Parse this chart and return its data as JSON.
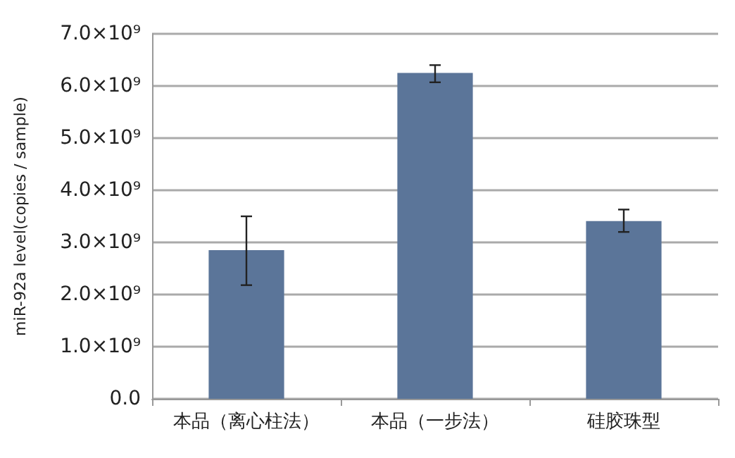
{
  "chart_data": {
    "type": "bar",
    "ylabel": "miR-92a level(copies / sample)",
    "categories": [
      "本品（离心柱法）",
      "本品（一步法）",
      "硅胶珠型"
    ],
    "values": [
      2850000000,
      6250000000,
      3410000000
    ],
    "errors": [
      [
        2180000000,
        3500000000
      ],
      [
        6070000000,
        6400000000
      ],
      [
        3200000000,
        3630000000
      ]
    ],
    "color": "#5b7599",
    "ylim": [
      0,
      7000000000
    ],
    "yticks": [
      {
        "value": 0,
        "label": "0.0"
      },
      {
        "value": 1000000000,
        "label": "1.0×10⁹"
      },
      {
        "value": 2000000000,
        "label": "2.0×10⁹"
      },
      {
        "value": 3000000000,
        "label": "3.0×10⁹"
      },
      {
        "value": 4000000000,
        "label": "4.0×10⁹"
      },
      {
        "value": 5000000000,
        "label": "5.0×10⁹"
      },
      {
        "value": 6000000000,
        "label": "6.0×10⁹"
      },
      {
        "value": 7000000000,
        "label": "7.0×10⁹"
      }
    ],
    "grid": "y"
  }
}
